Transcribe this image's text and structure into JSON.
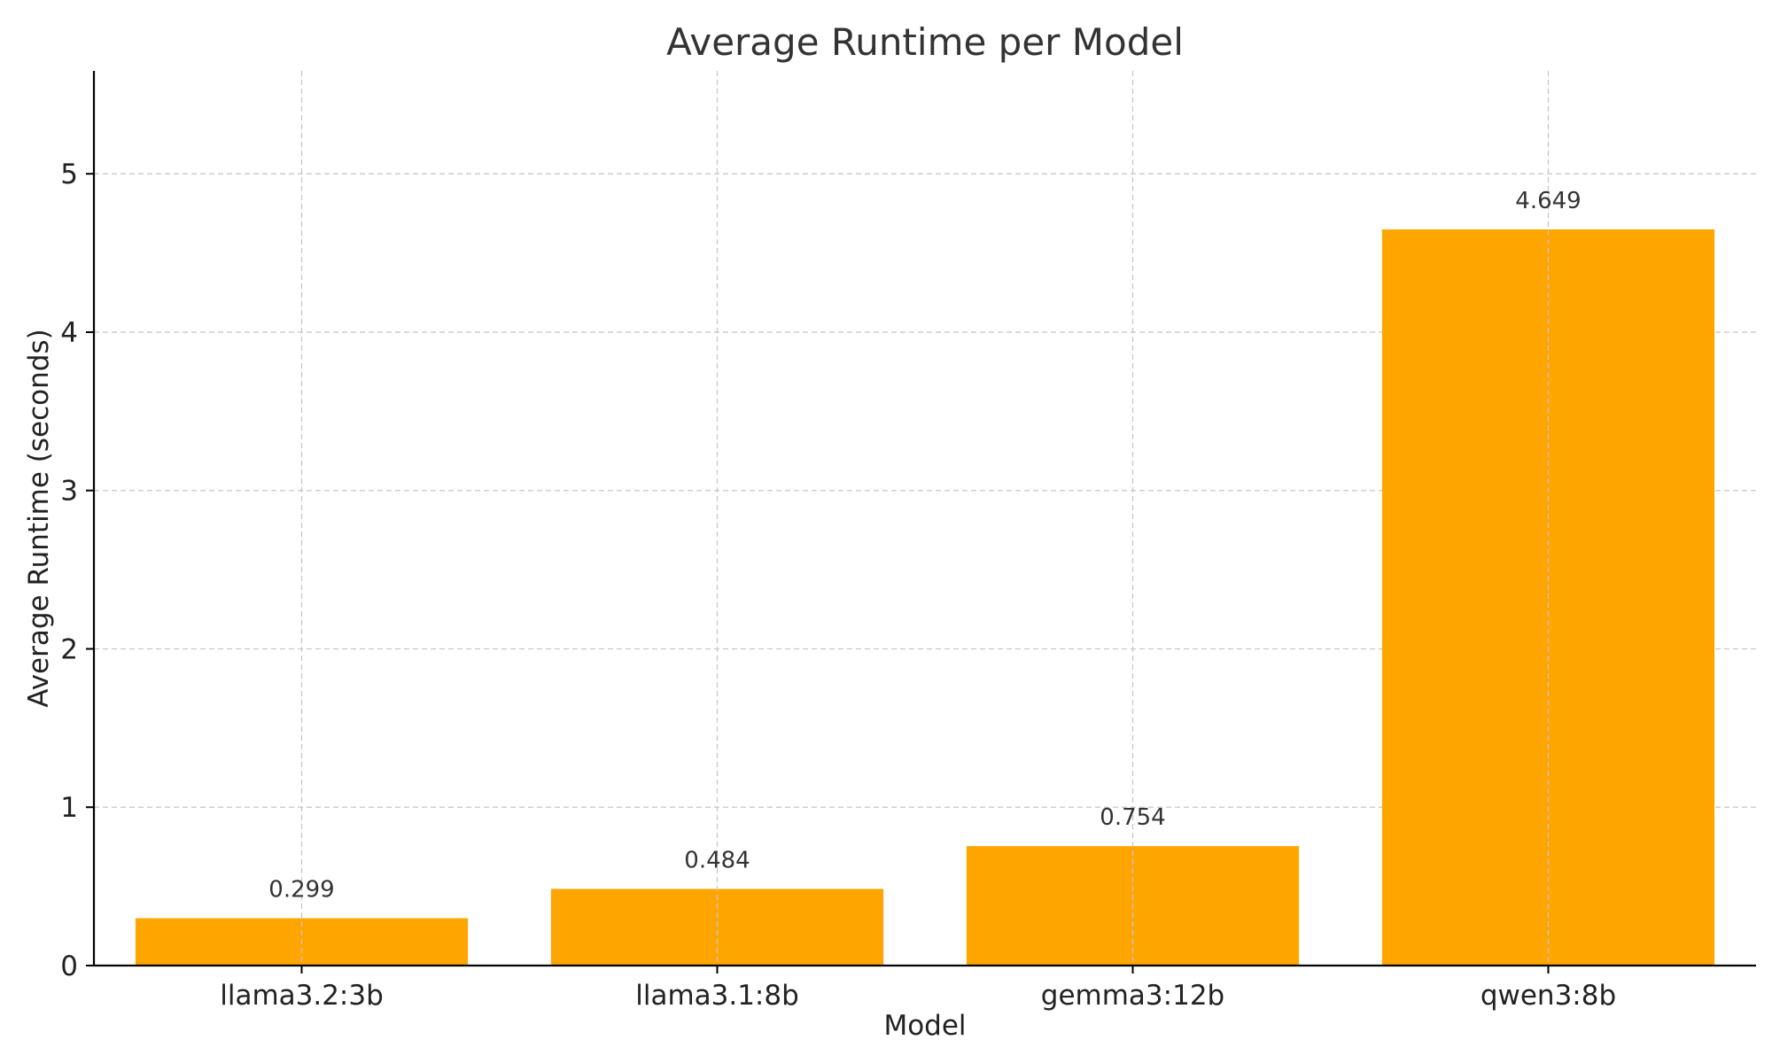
{
  "chart_data": {
    "type": "bar",
    "title": "Average Runtime per Model",
    "xlabel": "Model",
    "ylabel": "Average Runtime (seconds)",
    "categories": [
      "llama3.2:3b",
      "llama3.1:8b",
      "gemma3:12b",
      "qwen3:8b"
    ],
    "values": [
      0.299,
      0.484,
      0.754,
      4.649
    ],
    "value_labels": [
      "0.299",
      "0.484",
      "0.754",
      "4.649"
    ],
    "ylim": [
      0,
      5.65
    ],
    "yticks": [
      0,
      1,
      2,
      3,
      4,
      5
    ],
    "grid": true,
    "bar_color": "#FFA500"
  }
}
